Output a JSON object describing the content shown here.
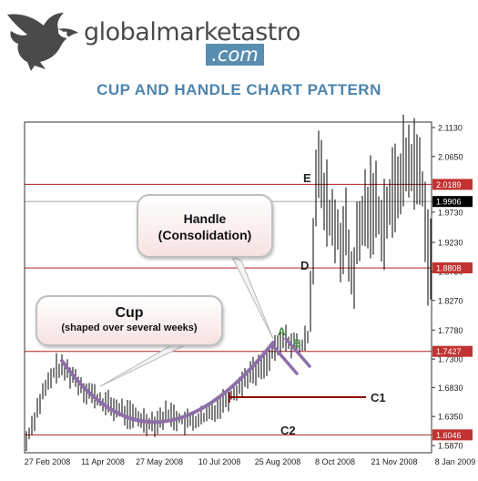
{
  "header": {
    "logo_text": "globalmarketastro",
    "logo_domain": ".com",
    "title": "CUP AND HANDLE CHART PATTERN"
  },
  "callouts": {
    "handle_line1": "Handle",
    "handle_line2": "(Consolidation)",
    "cup_line1": "Cup",
    "cup_line2": "(shaped over several weeks)"
  },
  "chart_data": {
    "type": "bar",
    "ylim": [
      1.575,
      2.122
    ],
    "y_ticks": [
      "2.1130",
      "2.0650",
      "1.9730",
      "1.9230",
      "1.8750",
      "1.8270",
      "1.7780",
      "1.7300",
      "1.6830",
      "1.6350",
      "1.5870"
    ],
    "x_labels": [
      "27 Feb 2008",
      "11 Apr 2008",
      "27 May 2008",
      "10 Jul 2008",
      "25 Aug 2008",
      "8 Oct 2008",
      "21 Nov 2008",
      "8 Jan 2009"
    ],
    "price_levels": [
      {
        "value": "2.0189",
        "type": "resistance"
      },
      {
        "value": "1.9906",
        "type": "current"
      },
      {
        "value": "1.8808",
        "type": "resistance"
      },
      {
        "value": "1.7427",
        "type": "resistance"
      },
      {
        "value": "1.6046",
        "type": "resistance"
      }
    ],
    "point_labels": [
      "A",
      "B",
      "C1",
      "C2",
      "D",
      "E"
    ],
    "colors": {
      "level_line": "#b22222",
      "level_label_bg": "#c23232",
      "current_label_bg": "#000000",
      "cup_arc": "#8e6fa8",
      "point_label_green": "#3f8f3f",
      "price_bars": "#000000"
    }
  }
}
